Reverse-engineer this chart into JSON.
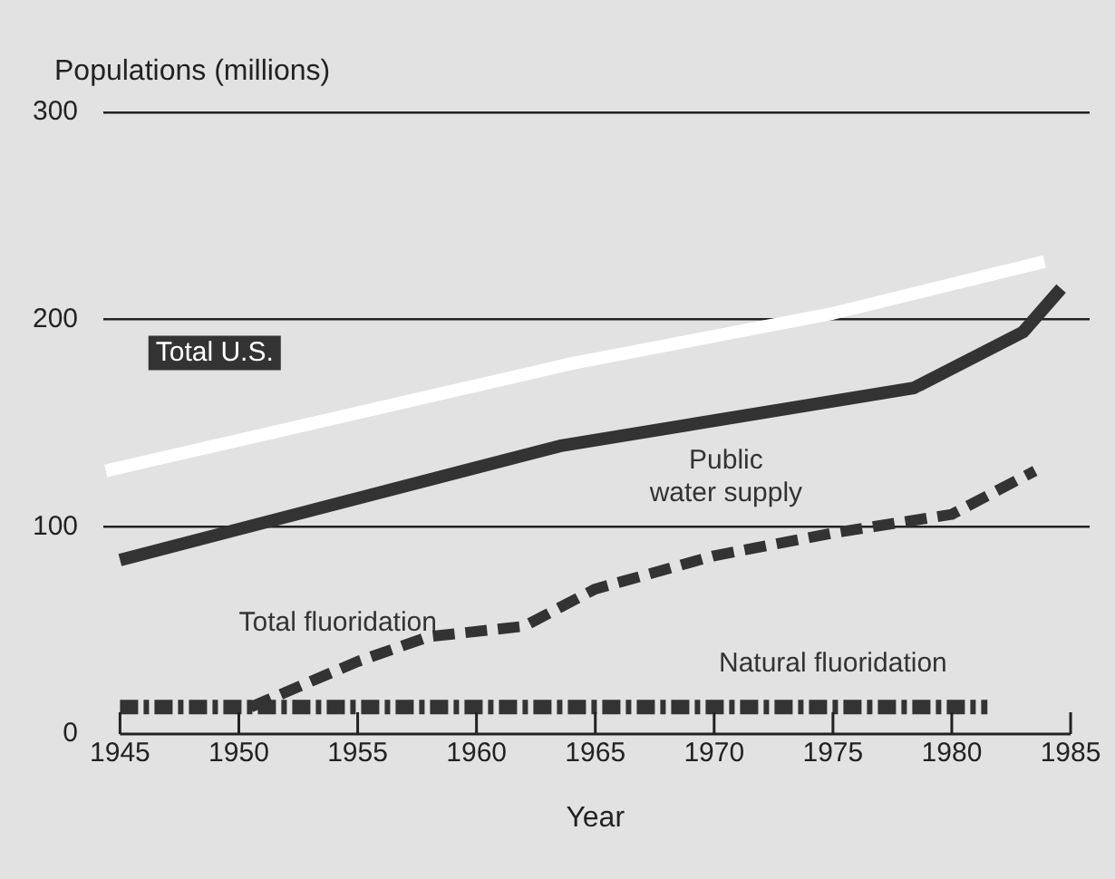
{
  "chart_data": {
    "type": "line",
    "ylabel": "Populations (millions)",
    "xlabel": "Year",
    "xlim": [
      1944.3,
      1985.8
    ],
    "xticks": [
      1945,
      1950,
      1955,
      1960,
      1965,
      1970,
      1975,
      1980,
      1985
    ],
    "ylim": [
      0,
      300
    ],
    "yticks": [
      0,
      100,
      200,
      300
    ],
    "grid": "y",
    "legend": false,
    "marker": "none",
    "series": [
      {
        "name": "Total U.S.",
        "color": "#ffffff",
        "line_style": "solid",
        "x": [
          1944.4,
          1964.1,
          1975,
          1983.9
        ],
        "values": [
          127,
          179,
          203,
          228
        ]
      },
      {
        "name": "Public water supply",
        "color": "#333333",
        "line_style": "solid",
        "x": [
          1945,
          1963.5,
          1978.4,
          1983,
          1984.6
        ],
        "values": [
          84,
          139,
          167,
          194,
          215
        ]
      },
      {
        "name": "Total fluoridation",
        "color": "#333333",
        "line_style": "dashed",
        "x": [
          1950.5,
          1955,
          1958,
          1962,
          1965,
          1970,
          1975,
          1980,
          1983.5
        ],
        "values": [
          13,
          35,
          47,
          52,
          70,
          86,
          97,
          106,
          127
        ]
      },
      {
        "name": "Natural fluoridation",
        "color": "#333333",
        "line_style": "dotted",
        "x": [
          1945,
          1981.5
        ],
        "values": [
          13,
          13
        ]
      }
    ]
  }
}
